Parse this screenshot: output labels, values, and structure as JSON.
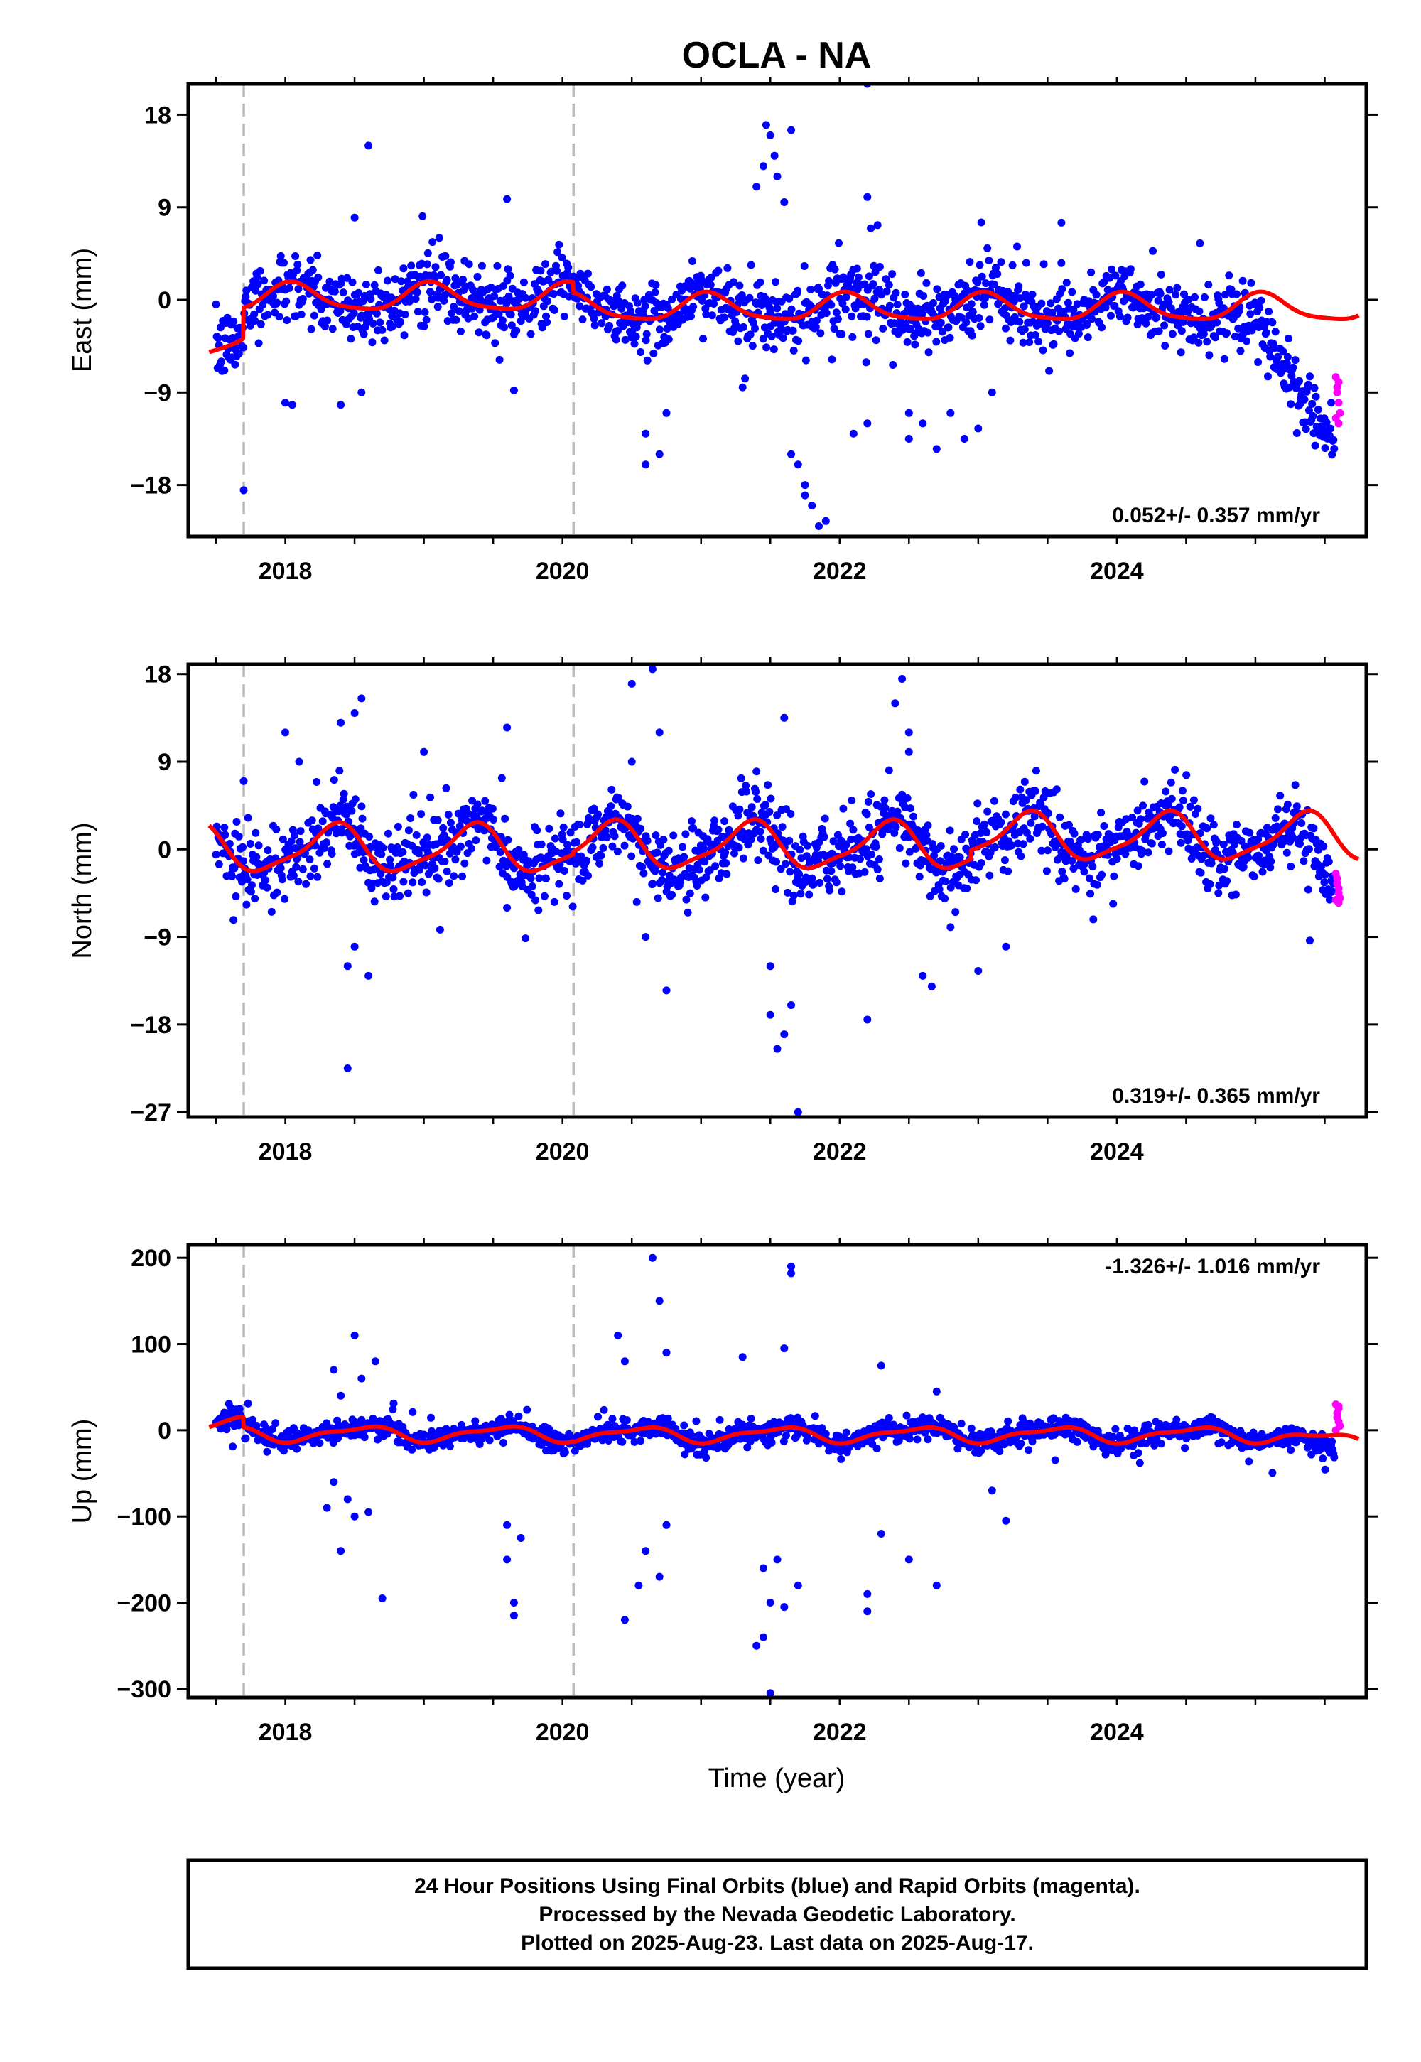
{
  "title": "OCLA - NA",
  "xlabel": "Time (year)",
  "footer": {
    "line1": "24 Hour Positions Using Final Orbits (blue) and Rapid Orbits (magenta).",
    "line2": "Processed by the Nevada Geodetic Laboratory.",
    "line3": "Plotted on 2025-Aug-23. Last data on 2025-Aug-17."
  },
  "colors": {
    "final_orbits": "#0000ff",
    "rapid_orbits": "#ff00ff",
    "model": "#ff0000",
    "steps": "#bbbbbb"
  },
  "chart_data": [
    {
      "type": "scatter",
      "name": "east",
      "ylabel": "East (mm)",
      "rate": "0.052+/- 0.357 mm/yr",
      "rate_position": "bottom-right",
      "xlim": [
        2017.3,
        2025.8
      ],
      "ylim": [
        -23,
        21
      ],
      "xticks": [
        2018,
        2020,
        2022,
        2024
      ],
      "xtick_labels": [
        "2018",
        "2020",
        "2022",
        "2024"
      ],
      "yticks": [
        -18,
        -9,
        0,
        9,
        18
      ],
      "ytick_labels": [
        "−18",
        "−9",
        "0",
        "9",
        "18"
      ],
      "step_lines": [
        2017.7,
        2020.08
      ],
      "seasonal": {
        "amp1": 1.3,
        "phase1": 0.2,
        "amp2": 0.3,
        "phase2": 0.6
      },
      "model_offsets": [
        {
          "start": 2017.45,
          "end": 2017.7,
          "ramp_from": -4.2,
          "ramp_to": -2.8
        },
        {
          "start": 2017.7,
          "end": 2020.08,
          "value": 0.2
        },
        {
          "start": 2020.08,
          "end": 2025.75,
          "value": -0.8
        }
      ],
      "final_orbits": {
        "start": 2017.5,
        "end": 2025.57,
        "step": 0.0055,
        "noise": 1.6,
        "trend_segments": [
          [
            2024.8,
            0.5
          ],
          [
            2025.57,
            -12.0
          ]
        ],
        "outliers": [
          [
            2017.7,
            -18.5
          ],
          [
            2018.6,
            15.0
          ],
          [
            2018.5,
            8.0
          ],
          [
            2019.6,
            9.8
          ],
          [
            2019.65,
            -8.8
          ],
          [
            2018.05,
            -10.2
          ],
          [
            2018.0,
            -10.0
          ],
          [
            2018.4,
            -10.2
          ],
          [
            2018.55,
            -9.0
          ],
          [
            2020.6,
            -16.0
          ],
          [
            2020.7,
            -15.0
          ],
          [
            2020.75,
            -11.0
          ],
          [
            2020.6,
            -13.0
          ],
          [
            2021.3,
            -8.5
          ],
          [
            2021.4,
            11.0
          ],
          [
            2021.47,
            17.0
          ],
          [
            2021.5,
            16.0
          ],
          [
            2021.53,
            14.0
          ],
          [
            2021.55,
            12.0
          ],
          [
            2021.6,
            9.5
          ],
          [
            2021.65,
            16.5
          ],
          [
            2021.45,
            13.0
          ],
          [
            2021.65,
            -15.0
          ],
          [
            2021.7,
            -16.0
          ],
          [
            2021.75,
            -19.0
          ],
          [
            2021.8,
            -20.0
          ],
          [
            2021.85,
            -22.0
          ],
          [
            2021.9,
            -21.5
          ],
          [
            2021.75,
            -18.0
          ],
          [
            2022.2,
            21.0
          ],
          [
            2022.2,
            10.0
          ],
          [
            2022.2,
            -12.0
          ],
          [
            2022.1,
            -13.0
          ],
          [
            2022.5,
            -13.5
          ],
          [
            2022.6,
            -12.0
          ],
          [
            2022.7,
            -14.5
          ],
          [
            2022.8,
            -11.0
          ],
          [
            2022.5,
            -11.0
          ],
          [
            2022.9,
            -13.5
          ],
          [
            2023.0,
            -12.5
          ],
          [
            2023.1,
            -9.0
          ],
          [
            2023.6,
            7.5
          ],
          [
            2024.6,
            5.5
          ]
        ]
      },
      "rapid_orbits": [
        [
          2025.58,
          -7.5
        ],
        [
          2025.59,
          -8.5
        ],
        [
          2025.6,
          -10.0
        ],
        [
          2025.61,
          -11.0
        ],
        [
          2025.6,
          -12.0
        ],
        [
          2025.59,
          -9.0
        ],
        [
          2025.58,
          -11.5
        ],
        [
          2025.6,
          -8.0
        ]
      ]
    },
    {
      "type": "scatter",
      "name": "north",
      "ylabel": "North (mm)",
      "rate": "0.319+/- 0.365 mm/yr",
      "rate_position": "bottom-right",
      "xlim": [
        2017.3,
        2025.8
      ],
      "ylim": [
        -27.5,
        19
      ],
      "xticks": [
        2018,
        2020,
        2022,
        2024
      ],
      "xtick_labels": [
        "2018",
        "2020",
        "2022",
        "2024"
      ],
      "yticks": [
        -27,
        -18,
        -9,
        0,
        9,
        18
      ],
      "ytick_labels": [
        "−27",
        "−18",
        "−9",
        "0",
        "9",
        "18"
      ],
      "step_lines": [
        2017.7,
        2020.08
      ],
      "seasonal": {
        "amp1": 2.3,
        "phase1": -0.1,
        "amp2": 0.6,
        "phase2": 0.2
      },
      "model_offsets": [
        {
          "start": 2017.45,
          "end": 2020.08,
          "value": 0.0
        },
        {
          "start": 2020.08,
          "end": 2022.95,
          "value": 0.3
        },
        {
          "start": 2022.95,
          "end": 2025.75,
          "value": 1.2
        }
      ],
      "final_orbits": {
        "start": 2017.5,
        "end": 2025.57,
        "step": 0.0055,
        "noise": 1.8,
        "trend_segments": [
          [
            2025.2,
            0.0
          ],
          [
            2025.57,
            -5.5
          ]
        ],
        "outliers": [
          [
            2018.4,
            13.0
          ],
          [
            2018.55,
            15.5
          ],
          [
            2018.5,
            14.0
          ],
          [
            2018.45,
            -12.0
          ],
          [
            2018.6,
            -13.0
          ],
          [
            2018.5,
            -10.0
          ],
          [
            2018.45,
            -22.5
          ],
          [
            2017.7,
            7.0
          ],
          [
            2018.0,
            12.0
          ],
          [
            2018.1,
            9.0
          ],
          [
            2019.6,
            12.5
          ],
          [
            2019.6,
            -6.0
          ],
          [
            2019.0,
            10.0
          ],
          [
            2020.5,
            17.0
          ],
          [
            2020.65,
            18.5
          ],
          [
            2020.7,
            12.0
          ],
          [
            2020.6,
            -9.0
          ],
          [
            2020.75,
            -14.5
          ],
          [
            2020.5,
            9.0
          ],
          [
            2021.5,
            -17.0
          ],
          [
            2021.6,
            -19.0
          ],
          [
            2021.55,
            -20.5
          ],
          [
            2021.7,
            -27.0
          ],
          [
            2021.65,
            -16.0
          ],
          [
            2021.5,
            -12.0
          ],
          [
            2021.6,
            13.5
          ],
          [
            2021.4,
            8.0
          ],
          [
            2022.2,
            -17.5
          ],
          [
            2022.4,
            15.0
          ],
          [
            2022.45,
            17.5
          ],
          [
            2022.5,
            12.0
          ],
          [
            2022.5,
            10.0
          ],
          [
            2022.6,
            -13.0
          ],
          [
            2023.0,
            -12.5
          ],
          [
            2023.2,
            -10.0
          ],
          [
            2022.8,
            -8.0
          ]
        ]
      },
      "rapid_orbits": [
        [
          2025.58,
          -2.5
        ],
        [
          2025.59,
          -3.5
        ],
        [
          2025.6,
          -4.5
        ],
        [
          2025.61,
          -5.0
        ],
        [
          2025.6,
          -5.5
        ],
        [
          2025.59,
          -3.0
        ],
        [
          2025.58,
          -5.2
        ],
        [
          2025.6,
          -4.0
        ]
      ]
    },
    {
      "type": "scatter",
      "name": "up",
      "ylabel": "Up (mm)",
      "rate": "-1.326+/- 1.016 mm/yr",
      "rate_position": "top-right",
      "xlim": [
        2017.3,
        2025.8
      ],
      "ylim": [
        -310,
        215
      ],
      "xticks": [
        2018,
        2020,
        2022,
        2024
      ],
      "xtick_labels": [
        "2018",
        "2020",
        "2022",
        "2024"
      ],
      "yticks": [
        -300,
        -200,
        -100,
        0,
        100,
        200
      ],
      "ytick_labels": [
        "−300",
        "−200",
        "−100",
        "0",
        "100",
        "200"
      ],
      "step_lines": [
        2017.7,
        2020.08
      ],
      "seasonal": {
        "amp1": 8.0,
        "phase1": 0.7,
        "amp2": 3.0,
        "phase2": 0.4
      },
      "model_offsets": [
        {
          "start": 2017.45,
          "end": 2017.7,
          "ramp_from": 0.0,
          "ramp_to": 8.0
        },
        {
          "start": 2017.7,
          "end": 2020.08,
          "value": -4.0
        },
        {
          "start": 2020.08,
          "end": 2025.2,
          "value": -5.0
        },
        {
          "start": 2025.2,
          "end": 2025.75,
          "ramp_from": -5.0,
          "ramp_to": -16.0
        }
      ],
      "final_orbits": {
        "start": 2017.5,
        "end": 2025.57,
        "step": 0.0055,
        "noise": 6.0,
        "trend_segments": [
          [
            2025.2,
            0.0
          ],
          [
            2025.57,
            -15.0
          ]
        ],
        "outliers": [
          [
            2018.35,
            70.0
          ],
          [
            2018.5,
            110.0
          ],
          [
            2018.55,
            60.0
          ],
          [
            2018.65,
            80.0
          ],
          [
            2018.4,
            40.0
          ],
          [
            2018.3,
            -90.0
          ],
          [
            2018.4,
            -140.0
          ],
          [
            2018.45,
            -80.0
          ],
          [
            2018.5,
            -100.0
          ],
          [
            2018.6,
            -95.0
          ],
          [
            2018.7,
            -195.0
          ],
          [
            2018.35,
            -60.0
          ],
          [
            2019.6,
            -150.0
          ],
          [
            2019.65,
            -200.0
          ],
          [
            2019.65,
            -215.0
          ],
          [
            2019.7,
            -125.0
          ],
          [
            2019.6,
            -110.0
          ],
          [
            2020.4,
            110.0
          ],
          [
            2020.45,
            80.0
          ],
          [
            2020.65,
            200.0
          ],
          [
            2020.7,
            150.0
          ],
          [
            2020.75,
            90.0
          ],
          [
            2020.45,
            -220.0
          ],
          [
            2020.55,
            -180.0
          ],
          [
            2020.6,
            -140.0
          ],
          [
            2020.7,
            -170.0
          ],
          [
            2020.75,
            -110.0
          ],
          [
            2021.3,
            85.0
          ],
          [
            2021.6,
            95.0
          ],
          [
            2021.65,
            190.0
          ],
          [
            2021.65,
            182.0
          ],
          [
            2021.4,
            -250.0
          ],
          [
            2021.45,
            -240.0
          ],
          [
            2021.5,
            -200.0
          ],
          [
            2021.5,
            -305.0
          ],
          [
            2021.6,
            -205.0
          ],
          [
            2021.7,
            -180.0
          ],
          [
            2021.55,
            -150.0
          ],
          [
            2021.45,
            -160.0
          ],
          [
            2022.2,
            -190.0
          ],
          [
            2022.2,
            -210.0
          ],
          [
            2022.3,
            -120.0
          ],
          [
            2022.3,
            75.0
          ],
          [
            2022.5,
            -150.0
          ],
          [
            2022.7,
            -180.0
          ],
          [
            2022.7,
            45.0
          ],
          [
            2023.1,
            -70.0
          ],
          [
            2023.2,
            -105.0
          ]
        ]
      },
      "rapid_orbits": [
        [
          2025.58,
          30.0
        ],
        [
          2025.59,
          20.0
        ],
        [
          2025.6,
          10.0
        ],
        [
          2025.61,
          5.0
        ],
        [
          2025.6,
          25.0
        ],
        [
          2025.59,
          15.0
        ],
        [
          2025.58,
          0.0
        ],
        [
          2025.6,
          28.0
        ]
      ]
    }
  ]
}
